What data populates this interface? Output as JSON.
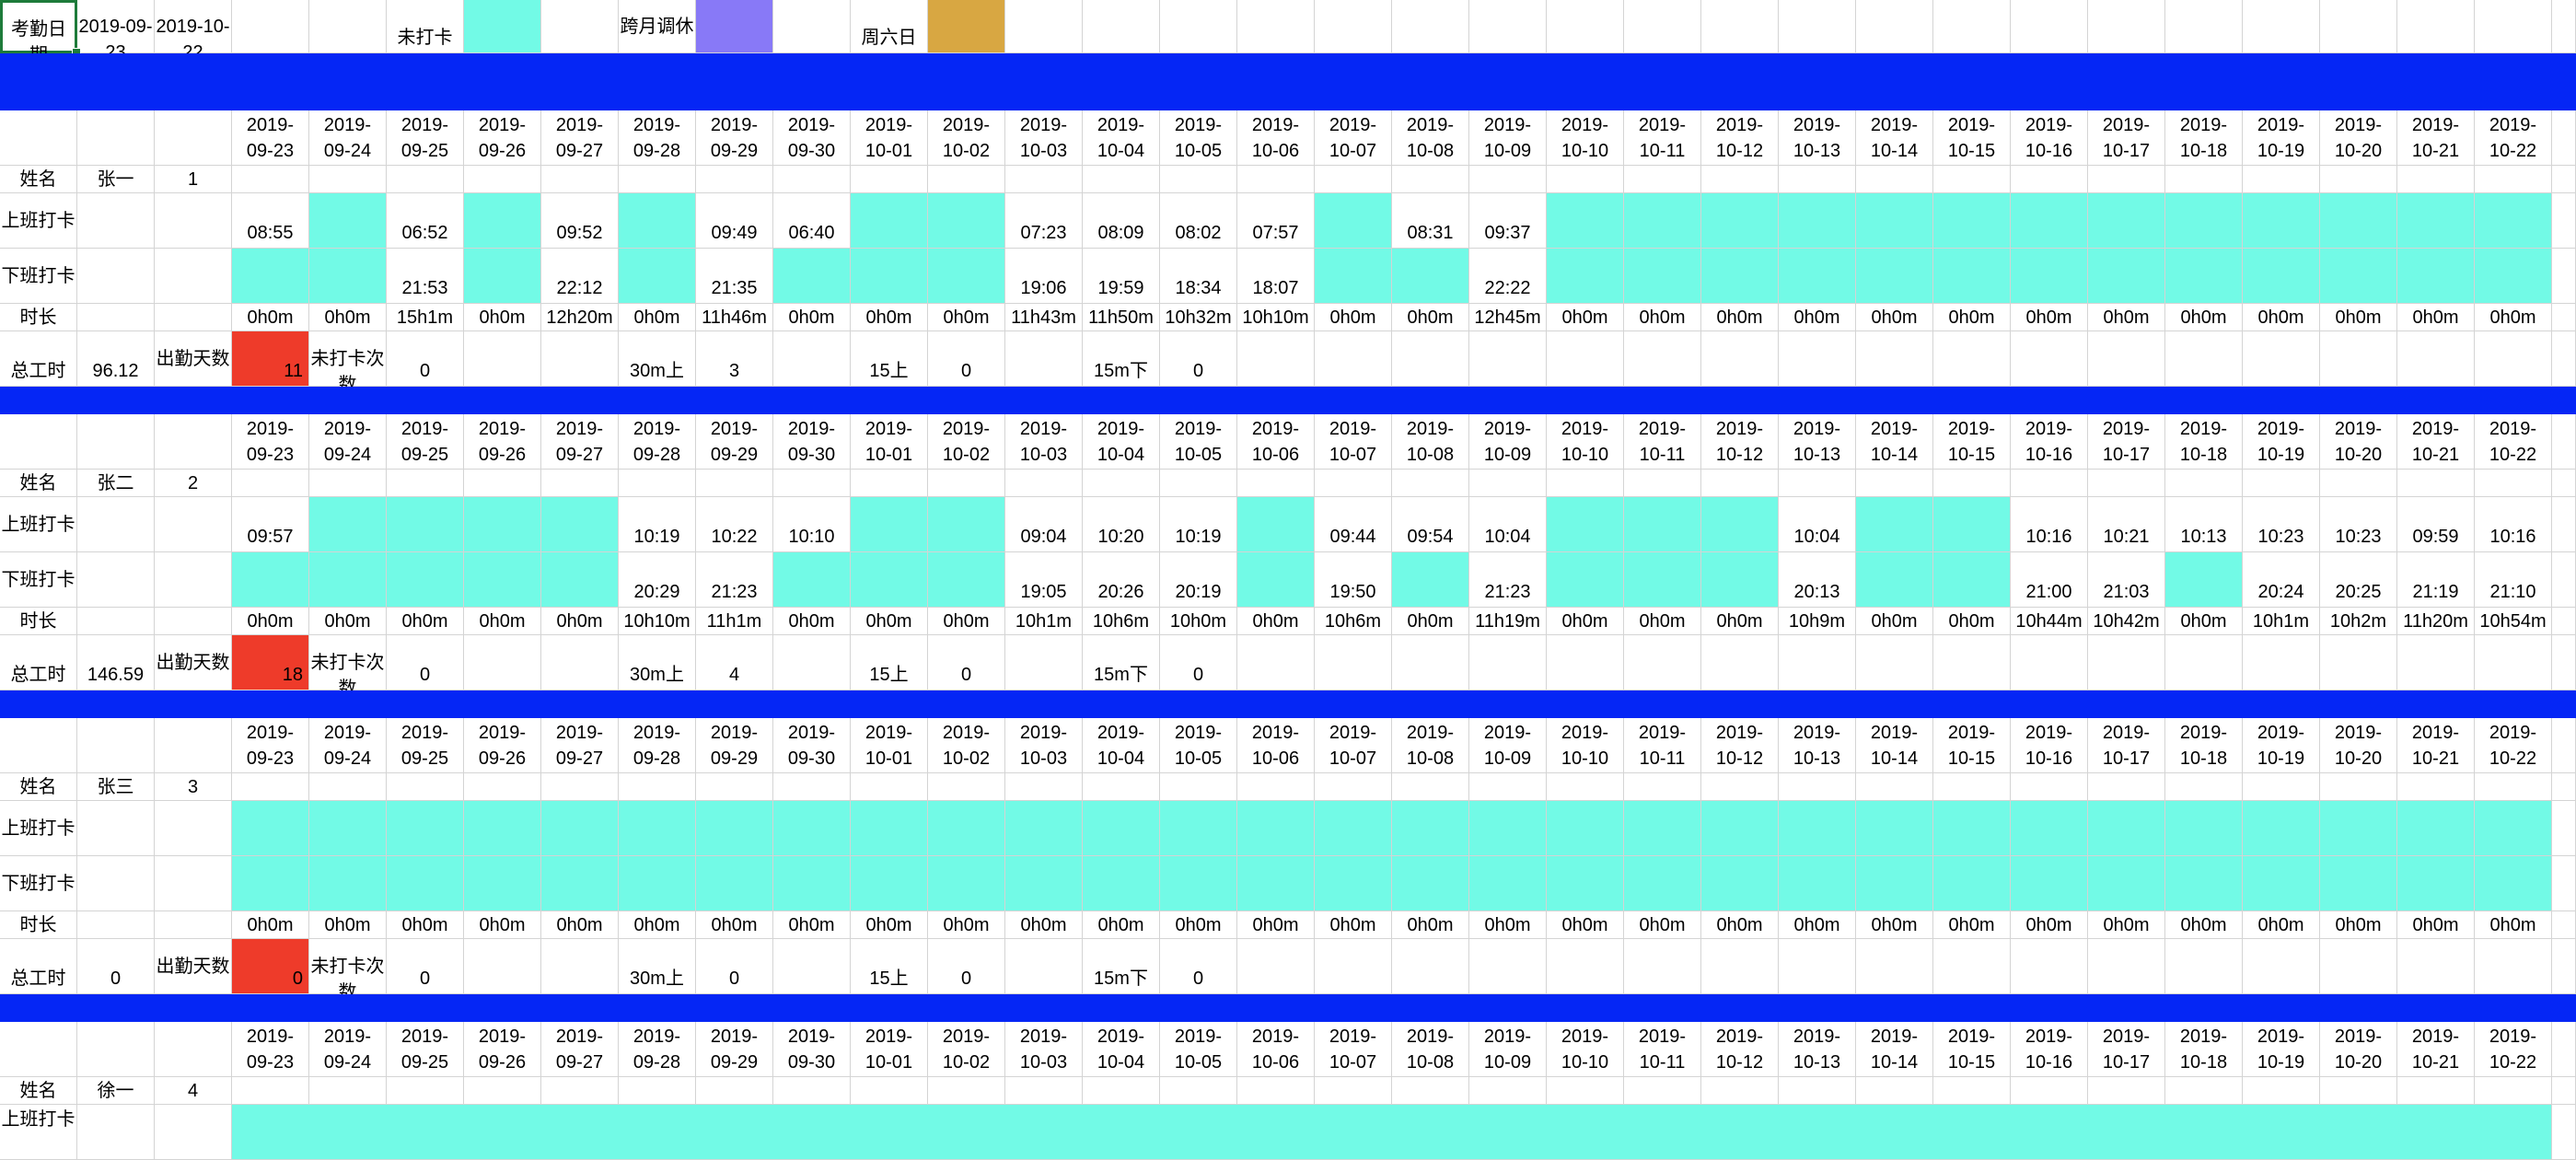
{
  "sheet": {
    "legend": {
      "label": "考勤日期",
      "start": "2019-09-23",
      "end": "2019-10-22",
      "missing_label": "未打卡",
      "cross_month_label": "跨月调休",
      "saturday_label": "周六日"
    },
    "labels": {
      "name": "姓名",
      "clock_in": "上班打卡",
      "clock_out": "下班打卡",
      "duration": "时长",
      "total_hours": "总工时",
      "attendance_days": "出勤天数",
      "missed_count": "未打卡次数",
      "late30": "30m上",
      "late15": "15上",
      "early15": "15m下"
    },
    "colors": {
      "missing": "#72fae6",
      "separator": "#0526f5",
      "attendance": "#ee3b2a",
      "cross_month": "#8879f7",
      "weekend": "#d8a742"
    },
    "dates": [
      "2019-09-23",
      "2019-09-24",
      "2019-09-25",
      "2019-09-26",
      "2019-09-27",
      "2019-09-28",
      "2019-09-29",
      "2019-09-30",
      "2019-10-01",
      "2019-10-02",
      "2019-10-03",
      "2019-10-04",
      "2019-10-05",
      "2019-10-06",
      "2019-10-07",
      "2019-10-08",
      "2019-10-09",
      "2019-10-10",
      "2019-10-11",
      "2019-10-12",
      "2019-10-13",
      "2019-10-14",
      "2019-10-15",
      "2019-10-16",
      "2019-10-17",
      "2019-10-18",
      "2019-10-19",
      "2019-10-20",
      "2019-10-21",
      "2019-10-22"
    ],
    "employees": [
      {
        "name": "张一",
        "id": "1",
        "clock_in": [
          "08:55",
          "",
          "06:52",
          "",
          "09:52",
          "",
          "09:49",
          "06:40",
          "",
          "",
          "07:23",
          "08:09",
          "08:02",
          "07:57",
          "",
          "08:31",
          "09:37",
          "",
          "",
          "",
          "",
          "",
          "",
          "",
          "",
          "",
          "",
          "",
          "",
          ""
        ],
        "clock_out": [
          "",
          "",
          "21:53",
          "",
          "22:12",
          "",
          "21:35",
          "",
          "",
          "",
          "19:06",
          "19:59",
          "18:34",
          "18:07",
          "",
          "",
          "22:22",
          "",
          "",
          "",
          "",
          "",
          "",
          "",
          "",
          "",
          "",
          "",
          "",
          ""
        ],
        "duration": [
          "0h0m",
          "0h0m",
          "15h1m",
          "0h0m",
          "12h20m",
          "0h0m",
          "11h46m",
          "0h0m",
          "0h0m",
          "0h0m",
          "11h43m",
          "11h50m",
          "10h32m",
          "10h10m",
          "0h0m",
          "0h0m",
          "12h45m",
          "0h0m",
          "0h0m",
          "0h0m",
          "0h0m",
          "0h0m",
          "0h0m",
          "0h0m",
          "0h0m",
          "0h0m",
          "0h0m",
          "0h0m",
          "0h0m",
          "0h0m"
        ],
        "total_hours": "96.12",
        "attendance_days": "11",
        "missed": "0",
        "late30": "3",
        "late15": "0",
        "early15": "0"
      },
      {
        "name": "张二",
        "id": "2",
        "clock_in": [
          "09:57",
          "",
          "",
          "",
          "",
          "10:19",
          "10:22",
          "10:10",
          "",
          "",
          "09:04",
          "10:20",
          "10:19",
          "",
          "09:44",
          "09:54",
          "10:04",
          "",
          "",
          "",
          "10:04",
          "",
          "",
          "10:16",
          "10:21",
          "10:13",
          "10:23",
          "10:23",
          "09:59",
          "10:16"
        ],
        "clock_out": [
          "",
          "",
          "",
          "",
          "",
          "20:29",
          "21:23",
          "",
          "",
          "",
          "19:05",
          "20:26",
          "20:19",
          "",
          "19:50",
          "",
          "21:23",
          "",
          "",
          "",
          "20:13",
          "",
          "",
          "21:00",
          "21:03",
          "",
          "20:24",
          "20:25",
          "21:19",
          "21:10"
        ],
        "duration": [
          "0h0m",
          "0h0m",
          "0h0m",
          "0h0m",
          "0h0m",
          "10h10m",
          "11h1m",
          "0h0m",
          "0h0m",
          "0h0m",
          "10h1m",
          "10h6m",
          "10h0m",
          "0h0m",
          "10h6m",
          "0h0m",
          "11h19m",
          "0h0m",
          "0h0m",
          "0h0m",
          "10h9m",
          "0h0m",
          "0h0m",
          "10h44m",
          "10h42m",
          "0h0m",
          "10h1m",
          "10h2m",
          "11h20m",
          "10h54m"
        ],
        "total_hours": "146.59",
        "attendance_days": "18",
        "missed": "0",
        "late30": "4",
        "late15": "0",
        "early15": "0"
      },
      {
        "name": "张三",
        "id": "3",
        "clock_in": [
          "",
          "",
          "",
          "",
          "",
          "",
          "",
          "",
          "",
          "",
          "",
          "",
          "",
          "",
          "",
          "",
          "",
          "",
          "",
          "",
          "",
          "",
          "",
          "",
          "",
          "",
          "",
          "",
          "",
          ""
        ],
        "clock_out": [
          "",
          "",
          "",
          "",
          "",
          "",
          "",
          "",
          "",
          "",
          "",
          "",
          "",
          "",
          "",
          "",
          "",
          "",
          "",
          "",
          "",
          "",
          "",
          "",
          "",
          "",
          "",
          "",
          "",
          ""
        ],
        "duration": [
          "0h0m",
          "0h0m",
          "0h0m",
          "0h0m",
          "0h0m",
          "0h0m",
          "0h0m",
          "0h0m",
          "0h0m",
          "0h0m",
          "0h0m",
          "0h0m",
          "0h0m",
          "0h0m",
          "0h0m",
          "0h0m",
          "0h0m",
          "0h0m",
          "0h0m",
          "0h0m",
          "0h0m",
          "0h0m",
          "0h0m",
          "0h0m",
          "0h0m",
          "0h0m",
          "0h0m",
          "0h0m",
          "0h0m",
          "0h0m"
        ],
        "total_hours": "0",
        "attendance_days": "0",
        "missed": "0",
        "late30": "0",
        "late15": "0",
        "early15": "0"
      },
      {
        "name": "徐一",
        "id": "4"
      }
    ]
  }
}
